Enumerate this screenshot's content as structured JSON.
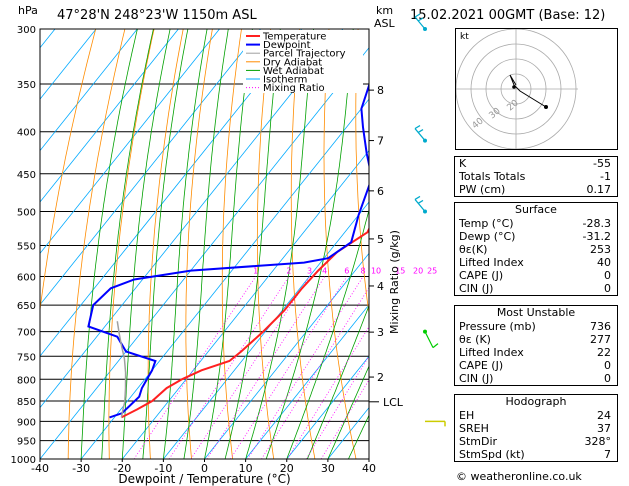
{
  "header": {
    "location": "47°28'N  248°23'W  1150m  ASL",
    "datetime": "15.02.2021  00GMT  (Base: 12)",
    "hpa_label": "hPa",
    "km_label": "km",
    "asl_label": "ASL"
  },
  "chart_data": {
    "type": "line",
    "xlabel": "Dewpoint / Temperature (°C)",
    "ylabel": "hPa",
    "right_axis_label": "Mixing Ratio (g/kg)",
    "xlim": [
      -40,
      40
    ],
    "ylim": [
      1000,
      300
    ],
    "x_ticks": [
      -40,
      -30,
      -20,
      -10,
      0,
      10,
      20,
      30,
      40
    ],
    "pressure_levels": [
      300,
      350,
      400,
      450,
      500,
      550,
      600,
      650,
      700,
      750,
      800,
      850,
      900,
      950,
      1000
    ],
    "km_ticks": [
      {
        "label": "8",
        "p": 356
      },
      {
        "label": "7",
        "p": 410
      },
      {
        "label": "6",
        "p": 472
      },
      {
        "label": "5",
        "p": 540
      },
      {
        "label": "4",
        "p": 616
      },
      {
        "label": "3",
        "p": 701
      },
      {
        "label": "2",
        "p": 795
      }
    ],
    "lcl": {
      "label": "LCL",
      "p": 852
    },
    "mixing_ratio_labels": [
      "1",
      "2",
      "3",
      "4",
      "6",
      "8",
      "10",
      "15",
      "20",
      "25"
    ],
    "mixing_ratios": [
      1,
      2,
      3,
      4,
      6,
      8,
      10,
      15,
      20,
      25
    ],
    "legend": [
      "Temperature",
      "Dewpoint",
      "Parcel Trajectory",
      "Dry Adiabat",
      "Wet Adiabat",
      "Isotherm",
      "Mixing Ratio"
    ],
    "colors": {
      "temperature": "#ff2020",
      "dewpoint": "#0000ff",
      "parcel": "#a0a0a0",
      "dry_adiabat": "#ff8c00",
      "wet_adiabat": "#00a000",
      "isotherm": "#00aaff",
      "mixing_ratio": "#ff00ff"
    },
    "series": [
      {
        "name": "Temperature",
        "points": [
          [
            -28.3,
            890
          ],
          [
            -26,
            870
          ],
          [
            -24,
            850
          ],
          [
            -23,
            820
          ],
          [
            -21,
            800
          ],
          [
            -18,
            780
          ],
          [
            -13,
            760
          ],
          [
            -12,
            740
          ],
          [
            -10.5,
            700
          ],
          [
            -9.5,
            660
          ],
          [
            -9.5,
            620
          ],
          [
            -9,
            590
          ],
          [
            -8,
            560
          ],
          [
            -4.5,
            530
          ],
          [
            -6,
            500
          ],
          [
            -10,
            450
          ],
          [
            -15.5,
            400
          ],
          [
            -22,
            350
          ],
          [
            -30,
            300
          ]
        ]
      },
      {
        "name": "Dewpoint",
        "points": [
          [
            -31.2,
            890
          ],
          [
            -29,
            880
          ],
          [
            -28.5,
            860
          ],
          [
            -28,
            840
          ],
          [
            -29,
            820
          ],
          [
            -29.5,
            800
          ],
          [
            -30,
            780
          ],
          [
            -31,
            760
          ],
          [
            -40,
            740
          ],
          [
            -45,
            710
          ],
          [
            -54,
            690
          ],
          [
            -57,
            650
          ],
          [
            -56,
            620
          ],
          [
            -52,
            605
          ],
          [
            -40,
            590
          ],
          [
            -14,
            577
          ],
          [
            -9,
            570
          ],
          [
            -6.5,
            545
          ],
          [
            -10,
            505
          ],
          [
            -14,
            455
          ],
          [
            -20,
            425
          ],
          [
            -26,
            395
          ],
          [
            -30,
            375
          ],
          [
            -34,
            340
          ],
          [
            -39,
            300
          ]
        ]
      },
      {
        "name": "Parcel Trajectory",
        "points": [
          [
            -28.3,
            890
          ],
          [
            -29.5,
            870
          ],
          [
            -30.5,
            852
          ],
          [
            -33,
            820
          ],
          [
            -36,
            785
          ],
          [
            -39,
            755
          ],
          [
            -42,
            730
          ],
          [
            -45,
            705
          ],
          [
            -48,
            680
          ]
        ]
      }
    ]
  },
  "hodograph": {
    "label": "kt",
    "rings": [
      "20",
      "30",
      "40"
    ]
  },
  "indices": [
    {
      "label": "K",
      "value": "-55"
    },
    {
      "label": "Totals Totals",
      "value": "-1"
    },
    {
      "label": "PW (cm)",
      "value": "0.17"
    }
  ],
  "surface": {
    "title": "Surface",
    "rows": [
      {
        "label": "Temp (°C)",
        "value": "-28.3"
      },
      {
        "label": "Dewp (°C)",
        "value": "-31.2"
      },
      {
        "label": "θε(K)",
        "value": "253"
      },
      {
        "label": "Lifted Index",
        "value": "40"
      },
      {
        "label": "CAPE (J)",
        "value": "0"
      },
      {
        "label": "CIN (J)",
        "value": "0"
      }
    ]
  },
  "most_unstable": {
    "title": "Most Unstable",
    "rows": [
      {
        "label": "Pressure (mb)",
        "value": "736"
      },
      {
        "label": "θε (K)",
        "value": "277"
      },
      {
        "label": "Lifted Index",
        "value": "22"
      },
      {
        "label": "CAPE (J)",
        "value": "0"
      },
      {
        "label": "CIN (J)",
        "value": "0"
      }
    ]
  },
  "hodo_table": {
    "title": "Hodograph",
    "rows": [
      {
        "label": "EH",
        "value": "24"
      },
      {
        "label": "SREH",
        "value": "37"
      },
      {
        "label": "StmDir",
        "value": "328°"
      },
      {
        "label": "StmSpd (kt)",
        "value": "7"
      }
    ]
  },
  "footer": "© weatheronline.co.uk"
}
